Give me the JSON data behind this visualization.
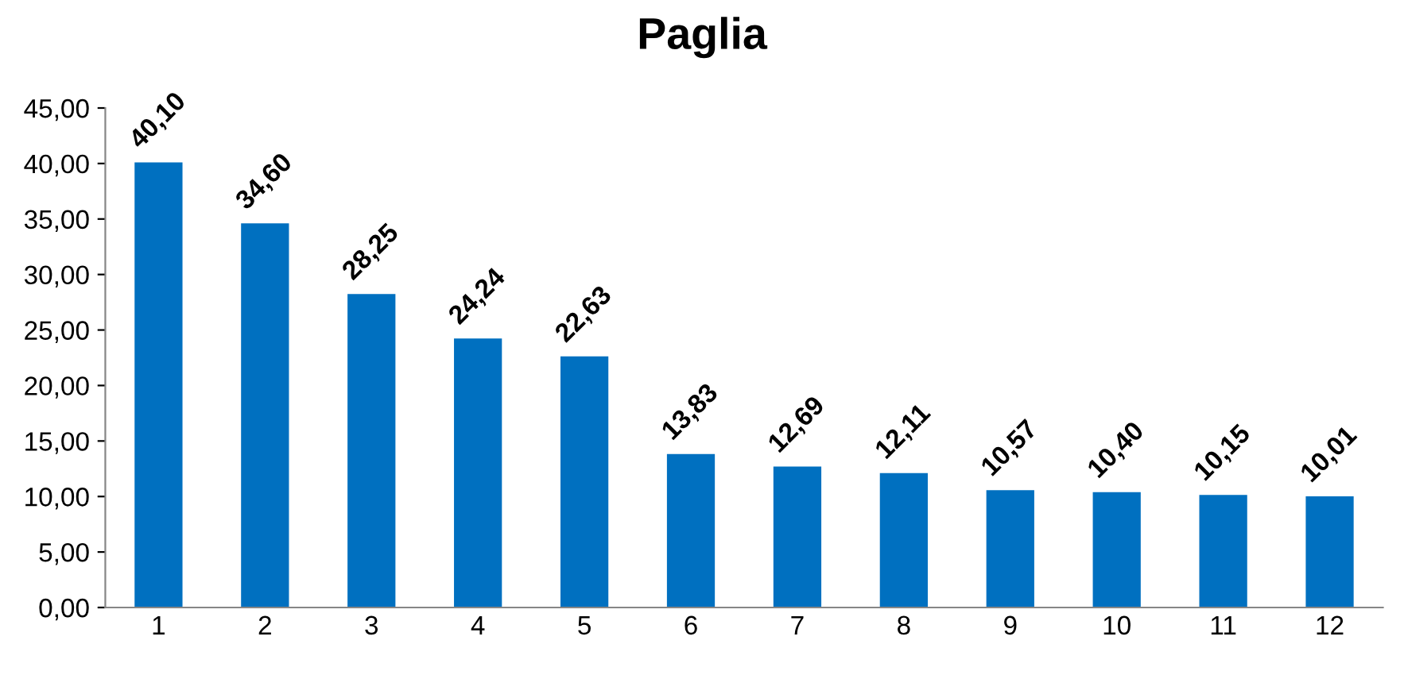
{
  "chart_data": {
    "type": "bar",
    "title": "Paglia",
    "categories": [
      "1",
      "2",
      "3",
      "4",
      "5",
      "6",
      "7",
      "8",
      "9",
      "10",
      "11",
      "12"
    ],
    "values": [
      40.1,
      34.6,
      28.25,
      24.24,
      22.63,
      13.83,
      12.69,
      12.11,
      10.57,
      10.4,
      10.15,
      10.01
    ],
    "value_labels": [
      "40,10",
      "34,60",
      "28,25",
      "24,24",
      "22,63",
      "13,83",
      "12,69",
      "12,11",
      "10,57",
      "10,40",
      "10,15",
      "10,01"
    ],
    "color": "#0070c0",
    "ylim": [
      0,
      45
    ],
    "yticks": [
      {
        "value": 0,
        "label": "0,00"
      },
      {
        "value": 5,
        "label": "5,00"
      },
      {
        "value": 10,
        "label": "10,00"
      },
      {
        "value": 15,
        "label": "15,00"
      },
      {
        "value": 20,
        "label": "20,00"
      },
      {
        "value": 25,
        "label": "25,00"
      },
      {
        "value": 30,
        "label": "30,00"
      },
      {
        "value": 35,
        "label": "35,00"
      },
      {
        "value": 40,
        "label": "40,00"
      },
      {
        "value": 45,
        "label": "45,00"
      }
    ],
    "grid": false,
    "legend": false
  }
}
